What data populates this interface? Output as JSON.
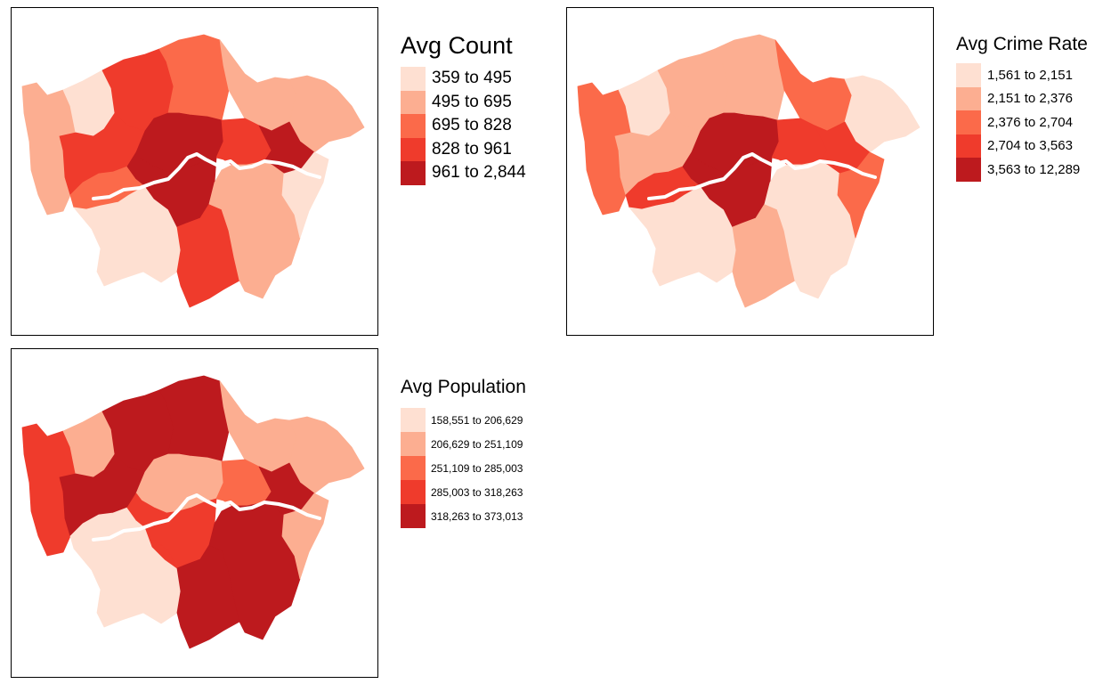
{
  "colors": {
    "class_1": "#fee0d2",
    "class_2": "#fcae91",
    "class_3": "#fb6a4a",
    "class_4": "#ef3b2c",
    "class_5": "#bd1a1e",
    "river": "#ffffff",
    "border": "#000000"
  },
  "maps": [
    {
      "legend_title": "Avg Count",
      "classes": [
        "359 to 495",
        "495 to 695",
        "695 to 828",
        "828 to 961",
        "961 to 2,844"
      ],
      "regions": {
        "west": 2,
        "northwest": 1,
        "north_west_central": 4,
        "north_center": 3,
        "north_east": 2,
        "far_east": 2,
        "center_west": 4,
        "west_central": 3,
        "central_north": 5,
        "central_northeast": 4,
        "east_inner": 5,
        "south_west": 1,
        "south_central": 1,
        "central": 5,
        "south_east_central": 4,
        "south_east": 2,
        "east": 1
      }
    },
    {
      "legend_title": "Avg Crime Rate",
      "classes": [
        "1,561 to 2,151",
        "2,151 to 2,376",
        "2,376 to 2,704",
        "2,704 to 3,563",
        "3,563 to 12,289"
      ],
      "regions": {
        "west": 3,
        "northwest": 1,
        "north_west_central": 2,
        "north_center": 2,
        "north_east": 3,
        "far_east": 1,
        "center_west": 2,
        "west_central": 4,
        "central_north": 5,
        "central_northeast": 4,
        "east_inner": 4,
        "south_west": 1,
        "south_central": 1,
        "central": 5,
        "south_east_central": 2,
        "south_east": 1,
        "east": 3
      }
    },
    {
      "legend_title": "Avg Population",
      "classes": [
        "158,551 to 206,629",
        "206,629 to 251,109",
        "251,109 to 285,003",
        "285,003 to 318,263",
        "318,263 to 373,013"
      ],
      "regions": {
        "west": 4,
        "northwest": 2,
        "north_west_central": 5,
        "north_center": 5,
        "north_east": 2,
        "far_east": 2,
        "center_west": 5,
        "west_central": 1,
        "central_north": 2,
        "central_northeast": 3,
        "east_inner": 5,
        "south_west": 1,
        "south_central": 4,
        "central": 4,
        "south_east_central": 5,
        "south_east": 5,
        "east": 2
      }
    }
  ]
}
